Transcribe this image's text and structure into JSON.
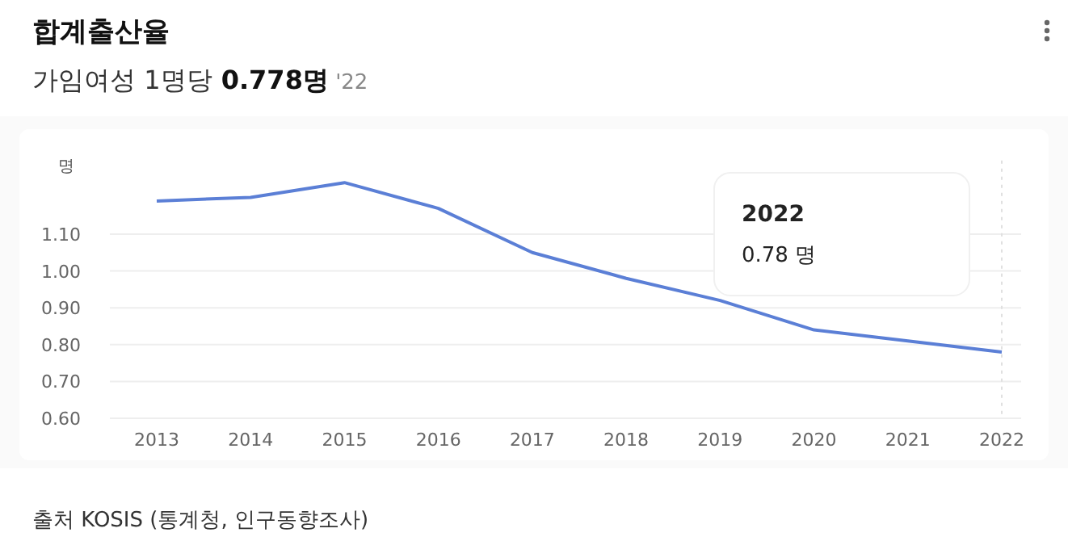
{
  "chart_data": {
    "type": "line",
    "title": "합계출산율",
    "subtitle": "가임여성 1명당 0.778명 '22",
    "ylabel": "명",
    "categories": [
      "2013",
      "2014",
      "2015",
      "2016",
      "2017",
      "2018",
      "2019",
      "2020",
      "2021",
      "2022"
    ],
    "series": [
      {
        "color": "#5b7fd6",
        "values": [
          1.19,
          1.2,
          1.24,
          1.17,
          1.05,
          0.98,
          0.92,
          0.84,
          0.81,
          0.78
        ]
      }
    ],
    "ylim": [
      0.6,
      1.3
    ],
    "yticks": [
      {
        "value": 0.6,
        "label": "0.60"
      },
      {
        "value": 0.7,
        "label": "0.70"
      },
      {
        "value": 0.8,
        "label": "0.80"
      },
      {
        "value": 0.9,
        "label": "0.90"
      },
      {
        "value": 1.0,
        "label": "1.00"
      },
      {
        "value": 1.1,
        "label": "1.10"
      }
    ],
    "grid": "y",
    "marker": "none",
    "line_style": "solid",
    "ref_lines": [
      {
        "axis": "x",
        "value": "2022",
        "color": "#e0e0e0",
        "line_style": "dotted"
      }
    ],
    "annotations": [
      "2022",
      "0.78 명",
      "출처 KOSIS (통계청, 인구동향조사)"
    ]
  }
}
